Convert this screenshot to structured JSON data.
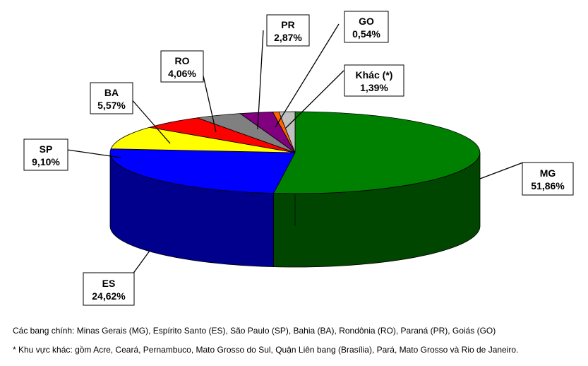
{
  "chart_data": {
    "type": "pie",
    "style": "3d",
    "title": "",
    "slices": [
      {
        "code": "MG",
        "label": "51,86%",
        "value": 51.86,
        "color": "#008000"
      },
      {
        "code": "ES",
        "label": "24,62%",
        "value": 24.62,
        "color": "#0000FF"
      },
      {
        "code": "SP",
        "label": "9,10%",
        "value": 9.1,
        "color": "#FFFF00"
      },
      {
        "code": "BA",
        "label": "5,57%",
        "value": 5.57,
        "color": "#FF0000"
      },
      {
        "code": "RO",
        "label": "4,06%",
        "value": 4.06,
        "color": "#808080"
      },
      {
        "code": "PR",
        "label": "2,87%",
        "value": 2.87,
        "color": "#800080"
      },
      {
        "code": "GO",
        "label": "0,54%",
        "value": 0.54,
        "color": "#FF6600"
      },
      {
        "code": "Khác (*)",
        "label": "1,39%",
        "value": 1.39,
        "color": "#C0C0C0"
      }
    ]
  },
  "notes": {
    "states": "Các bang chính: Minas Gerais (MG), Espírito Santo (ES), São Paulo (SP), Bahia (BA), Rondônia (RO), Paraná (PR), Goiás (GO)",
    "other": "* Khu vực khác: gồm Acre, Ceará, Pernambuco, Mato Grosso do Sul, Quận Liên bang (Brasília), Pará, Mato Grosso và Rio de Janeiro."
  }
}
